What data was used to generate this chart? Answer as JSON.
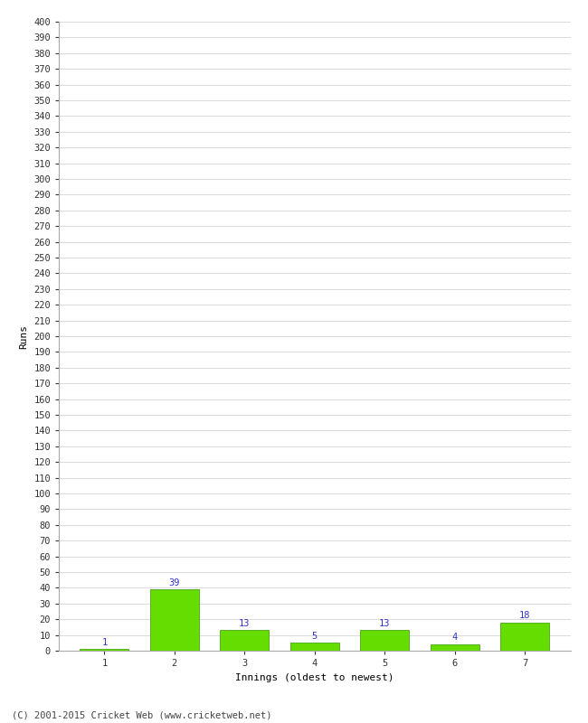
{
  "categories": [
    "1",
    "2",
    "3",
    "4",
    "5",
    "6",
    "7"
  ],
  "values": [
    1,
    39,
    13,
    5,
    13,
    4,
    18
  ],
  "bar_color": "#66dd00",
  "bar_edge_color": "#339900",
  "annotation_color": "#3333cc",
  "xlabel": "Innings (oldest to newest)",
  "ylabel": "Runs",
  "ylim": [
    0,
    400
  ],
  "background_color": "#ffffff",
  "grid_color": "#cccccc",
  "footer_text": "(C) 2001-2015 Cricket Web (www.cricketweb.net)",
  "annotation_fontsize": 7.5,
  "axis_fontsize": 7.5,
  "xlabel_fontsize": 8,
  "ylabel_fontsize": 8,
  "footer_fontsize": 7.5
}
